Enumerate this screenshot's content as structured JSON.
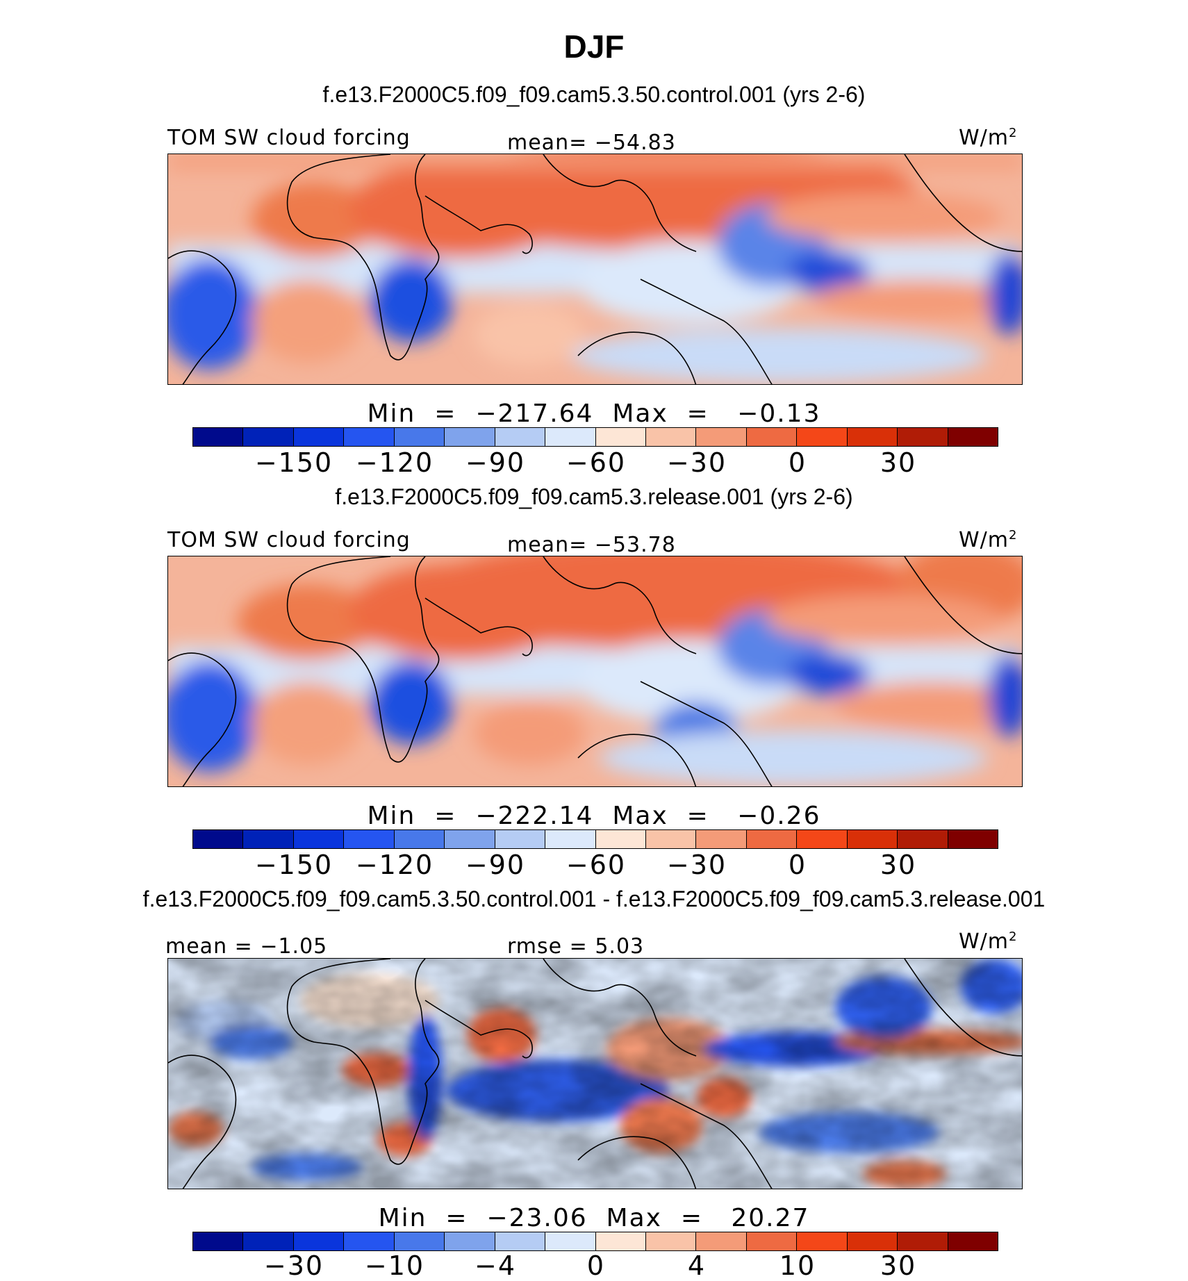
{
  "title": "DJF",
  "units": "W/m",
  "units_sup": "2",
  "colors": [
    "#000a8c",
    "#0022b8",
    "#0a35dc",
    "#2555f0",
    "#4878ea",
    "#7fa3ec",
    "#b5ccf4",
    "#dce9fb",
    "#fde6d6",
    "#f9c3a8",
    "#f49b78",
    "#ee6a42",
    "#f44718",
    "#d93008",
    "#b01c06",
    "#7f0000"
  ],
  "panels": [
    {
      "case": "f.e13.F2000C5.f09_f09.cam5.3.50.control.001 (yrs 2-6)",
      "left_label": "TOM SW cloud forcing",
      "mean_label": "mean=",
      "mean_value": "−54.83",
      "min_label": "Min",
      "min_value": "−217.64",
      "max_label": "Max",
      "max_value": "−0.13",
      "tick_labels": [
        "−150",
        "−120",
        "−90",
        "−60",
        "−30",
        "0",
        "30"
      ]
    },
    {
      "case": "f.e13.F2000C5.f09_f09.cam5.3.release.001 (yrs 2-6)",
      "left_label": "TOM SW cloud forcing",
      "mean_label": "mean=",
      "mean_value": "−53.78",
      "min_label": "Min",
      "min_value": "−222.14",
      "max_label": "Max",
      "max_value": "−0.26",
      "tick_labels": [
        "−150",
        "−120",
        "−90",
        "−60",
        "−30",
        "0",
        "30"
      ]
    },
    {
      "case": "f.e13.F2000C5.f09_f09.cam5.3.50.control.001 - f.e13.F2000C5.f09_f09.cam5.3.release.001",
      "mean_label": "mean =",
      "mean_value": "−1.05",
      "rmse_label": "rmse =",
      "rmse_value": "5.03",
      "min_label": "Min",
      "min_value": "−23.06",
      "max_label": "Max",
      "max_value": "20.27",
      "tick_labels": [
        "−30",
        "−10",
        "−4",
        "0",
        "4",
        "10",
        "30"
      ]
    }
  ]
}
